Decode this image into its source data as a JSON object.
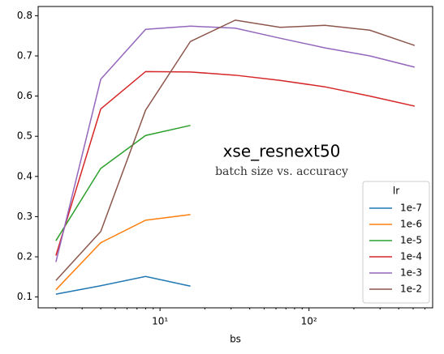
{
  "chart_data": {
    "type": "line",
    "title": "xse_resnext50",
    "subtitle": "batch size vs. accuracy",
    "xlabel": "bs",
    "legend_title": "lr",
    "legend_position": "lower right",
    "xscale": "log",
    "x": [
      2,
      4,
      8,
      16,
      32,
      64,
      128,
      256,
      512
    ],
    "series": [
      {
        "name": "1e-7",
        "color": "#1f77b4",
        "values": [
          0.107,
          0.128,
          0.151,
          0.127,
          null,
          null,
          null,
          null,
          null
        ]
      },
      {
        "name": "1e-6",
        "color": "#ff7f0e",
        "values": [
          0.118,
          0.235,
          0.291,
          0.305,
          null,
          null,
          null,
          null,
          null
        ]
      },
      {
        "name": "1e-5",
        "color": "#2ca02c",
        "values": [
          0.24,
          0.42,
          0.502,
          0.527,
          null,
          null,
          null,
          null,
          null
        ]
      },
      {
        "name": "1e-4",
        "color": "#d62728",
        "values": [
          0.203,
          0.568,
          0.661,
          0.66,
          0.652,
          0.639,
          0.623,
          0.6,
          0.575
        ]
      },
      {
        "name": "1e-3",
        "color": "#9467bd",
        "values": [
          0.187,
          0.642,
          0.766,
          0.774,
          0.769,
          0.744,
          0.72,
          0.7,
          0.672
        ]
      },
      {
        "name": "1e-2",
        "color": "#8c564b",
        "values": [
          0.141,
          0.263,
          0.565,
          0.736,
          0.789,
          0.771,
          0.776,
          0.764,
          0.726
        ]
      }
    ],
    "xlim": [
      1.52,
      676
    ],
    "xticks": [
      {
        "value": 10,
        "label": "10¹"
      },
      {
        "value": 100,
        "label": "10²"
      }
    ],
    "xminorticks": [
      2,
      3,
      4,
      5,
      6,
      7,
      8,
      9,
      20,
      30,
      40,
      50,
      60,
      70,
      80,
      90,
      200,
      300,
      400,
      500,
      600
    ],
    "ylim": [
      0.073,
      0.823
    ],
    "yticks": [
      0.1,
      0.2,
      0.3,
      0.4,
      0.5,
      0.6,
      0.7,
      0.8
    ]
  }
}
